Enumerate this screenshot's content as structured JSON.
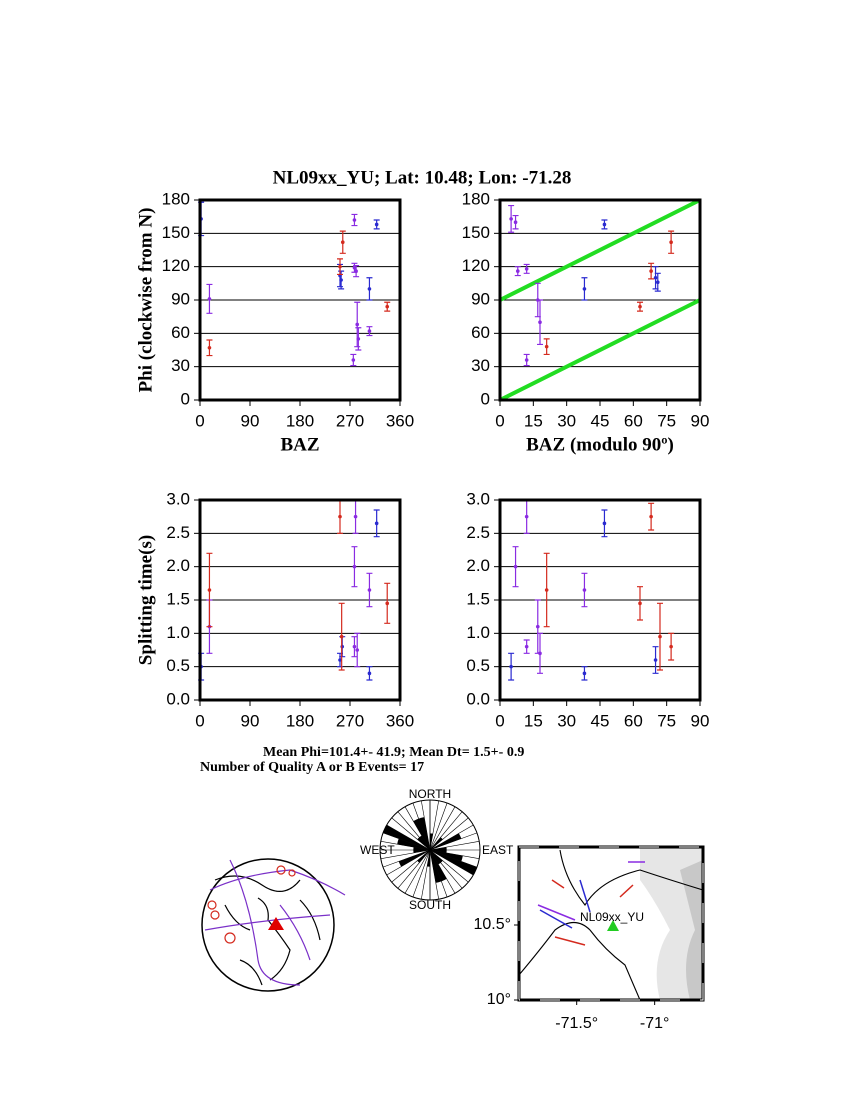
{
  "header": {
    "title": "NL09xx_YU; Lat:  10.48;  Lon:  -71.28"
  },
  "summary": [
    "Mean Phi=101.4+- 41.9; Mean Dt=  1.5+-  0.9",
    "Number of Quality A or B Events= 17"
  ],
  "chart_data": [
    {
      "type": "scatter",
      "ylabel": "Phi (clockwise from N)",
      "xlabel": "BAZ",
      "xlim": [
        0,
        360
      ],
      "xticks": [
        0,
        90,
        180,
        270,
        360
      ],
      "ylim": [
        0,
        180
      ],
      "yticks": [
        0,
        30,
        60,
        90,
        120,
        150,
        180
      ],
      "grid": true,
      "series": [
        {
          "color": "#2a2ad0",
          "x": [
            2,
            252,
            254,
            305,
            318
          ],
          "values": [
            163,
            112,
            108,
            100,
            158
          ],
          "errors": [
            15,
            10,
            8,
            10,
            4
          ]
        },
        {
          "color": "#8a2be2",
          "x": [
            17,
            276,
            278,
            278,
            281,
            283,
            285,
            305
          ],
          "values": [
            91,
            36,
            162,
            119,
            116,
            68,
            55,
            62
          ],
          "errors": [
            13,
            5,
            5,
            4,
            5,
            20,
            10,
            4
          ]
        },
        {
          "color": "#d42a1e",
          "x": [
            17,
            252,
            257,
            337
          ],
          "values": [
            47,
            120,
            142,
            84
          ],
          "errors": [
            7,
            7,
            10,
            4
          ]
        }
      ]
    },
    {
      "type": "scatter",
      "xlabel": "BAZ (modulo 90º)",
      "xlim": [
        0,
        90
      ],
      "xticks": [
        0,
        15,
        30,
        45,
        60,
        75,
        90
      ],
      "ylim": [
        0,
        180
      ],
      "yticks": [
        0,
        30,
        60,
        90,
        120,
        150,
        180
      ],
      "grid": true,
      "lines": [
        {
          "color": "#22dd22",
          "x": [
            0,
            90
          ],
          "values": [
            90,
            180
          ]
        },
        {
          "color": "#22dd22",
          "x": [
            0,
            90
          ],
          "values": [
            0,
            90
          ]
        }
      ],
      "series": [
        {
          "color": "#2a2ad0",
          "x": [
            38,
            47,
            70,
            71
          ],
          "values": [
            100,
            158,
            110,
            106
          ],
          "errors": [
            10,
            4,
            10,
            8
          ]
        },
        {
          "color": "#8a2be2",
          "x": [
            5,
            7,
            8,
            12,
            12,
            17,
            18
          ],
          "values": [
            163,
            160,
            116,
            118,
            36,
            90,
            70
          ],
          "errors": [
            12,
            6,
            4,
            4,
            5,
            15,
            20
          ]
        },
        {
          "color": "#d42a1e",
          "x": [
            21,
            63,
            68,
            77
          ],
          "values": [
            48,
            84,
            116,
            142
          ],
          "errors": [
            7,
            4,
            7,
            10
          ]
        }
      ]
    },
    {
      "type": "scatter",
      "ylabel": "Splitting time(s)",
      "xlim": [
        0,
        360
      ],
      "xticks": [
        0,
        90,
        180,
        270,
        360
      ],
      "ylim": [
        0,
        3
      ],
      "yticks": [
        {
          "value": 0,
          "label": "0.0"
        },
        0.5,
        {
          "value": 1,
          "label": "1.0"
        },
        1.5,
        {
          "value": 2,
          "label": "2.0"
        },
        2.5,
        {
          "value": 3,
          "label": "3.0"
        }
      ],
      "grid": true,
      "series": [
        {
          "color": "#2a2ad0",
          "x": [
            2,
            252,
            256,
            305,
            318
          ],
          "values": [
            0.5,
            0.6,
            0.8,
            0.4,
            2.65
          ],
          "errors": [
            0.2,
            0.1,
            0.15,
            0.1,
            0.2
          ]
        },
        {
          "color": "#8a2be2",
          "x": [
            17,
            278,
            278,
            280,
            283,
            305
          ],
          "values": [
            1.1,
            2.0,
            0.8,
            2.75,
            0.75,
            1.65
          ],
          "errors": [
            0.4,
            0.3,
            0.15,
            0.25,
            0.25,
            0.25
          ]
        },
        {
          "color": "#d42a1e",
          "x": [
            17,
            252,
            255,
            337
          ],
          "values": [
            1.65,
            2.75,
            0.95,
            1.45
          ],
          "errors": [
            0.55,
            0.25,
            0.5,
            0.3
          ]
        }
      ]
    },
    {
      "type": "scatter",
      "xlim": [
        0,
        90
      ],
      "xticks": [
        0,
        15,
        30,
        45,
        60,
        75,
        90
      ],
      "ylim": [
        0,
        3
      ],
      "yticks": [
        {
          "value": 0,
          "label": "0.0"
        },
        0.5,
        {
          "value": 1,
          "label": "1.0"
        },
        1.5,
        {
          "value": 2,
          "label": "2.0"
        },
        2.5,
        {
          "value": 3,
          "label": "3.0"
        }
      ],
      "grid": true,
      "series": [
        {
          "color": "#2a2ad0",
          "x": [
            5,
            38,
            47,
            70
          ],
          "values": [
            0.5,
            0.4,
            2.65,
            0.6
          ],
          "errors": [
            0.2,
            0.1,
            0.2,
            0.2
          ]
        },
        {
          "color": "#8a2be2",
          "x": [
            7,
            12,
            12,
            17,
            18,
            38
          ],
          "values": [
            2.0,
            0.8,
            2.75,
            1.1,
            0.7,
            1.65
          ],
          "errors": [
            0.3,
            0.1,
            0.25,
            0.4,
            0.3,
            0.25
          ]
        },
        {
          "color": "#d42a1e",
          "x": [
            21,
            63,
            68,
            72,
            77
          ],
          "values": [
            1.65,
            1.45,
            2.75,
            0.95,
            0.8
          ],
          "errors": [
            0.55,
            0.25,
            0.2,
            0.5,
            0.2
          ]
        }
      ]
    }
  ],
  "rose": {
    "north": "NORTH",
    "south": "SOUTH",
    "east": "EAST",
    "west": "WEST",
    "bins": [
      0,
      10,
      20,
      30,
      40,
      50,
      60,
      70,
      80,
      90,
      100,
      110,
      120,
      130,
      140,
      150,
      160,
      170,
      180
    ],
    "counts": [
      1,
      0,
      0,
      0,
      1,
      0,
      2,
      0,
      1,
      1,
      2,
      3,
      0,
      1,
      1,
      2,
      2,
      0
    ],
    "rlim": [
      0,
      3
    ]
  },
  "map": {
    "station": "NL09xx_YU",
    "xlim": [
      -71.87,
      -70.69
    ],
    "ylim": [
      10,
      11.02
    ],
    "xticks": [
      {
        "value": -71.5,
        "label": "-71.5°"
      },
      {
        "value": -71,
        "label": "-71°"
      }
    ],
    "yticks": [
      {
        "value": 10.5,
        "label": "10.5°"
      },
      {
        "value": 10,
        "label": "10°"
      }
    ]
  }
}
